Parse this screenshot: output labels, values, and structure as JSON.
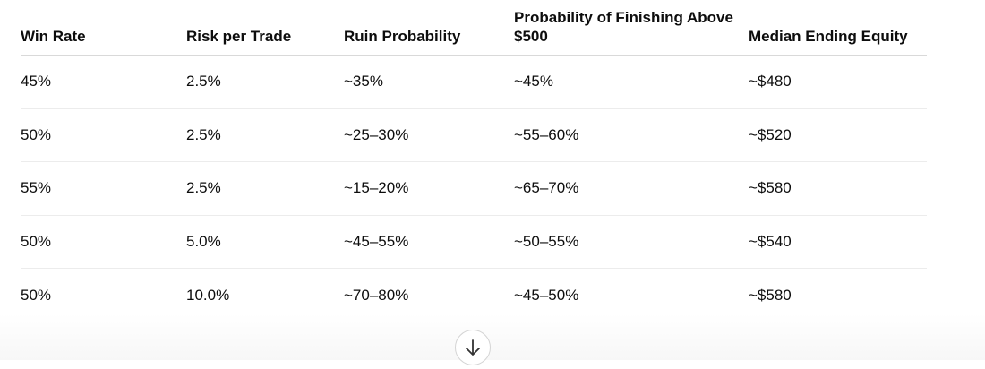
{
  "table": {
    "columns": [
      "Win Rate",
      "Risk per Trade",
      "Ruin Probability",
      "Probability of Finishing Above $500",
      "Median Ending Equity"
    ],
    "rows": [
      [
        "45%",
        "2.5%",
        "~35%",
        "~45%",
        "~$480"
      ],
      [
        "50%",
        "2.5%",
        "~25–30%",
        "~55–60%",
        "~$520"
      ],
      [
        "55%",
        "2.5%",
        "~15–20%",
        "~65–70%",
        "~$580"
      ],
      [
        "50%",
        "5.0%",
        "~45–55%",
        "~50–55%",
        "~$540"
      ],
      [
        "50%",
        "10.0%",
        "~70–80%",
        "~45–50%",
        "~$580"
      ]
    ]
  }
}
